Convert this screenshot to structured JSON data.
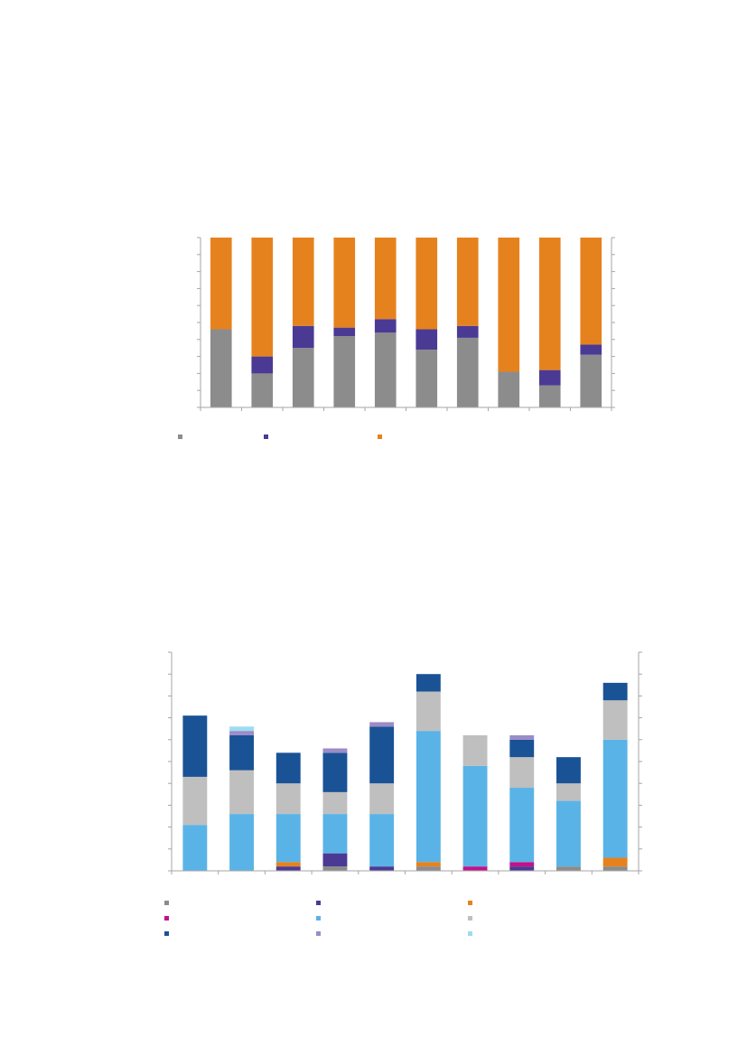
{
  "colors": {
    "axis": "#a6a6a6",
    "legend_c1": "#8c8c8c",
    "legend_c2": "#4b3a94",
    "legend_c3": "#e6821e"
  },
  "chart_data": [
    {
      "type": "bar",
      "stacked": true,
      "percent": true,
      "ylim": [
        0,
        100
      ],
      "grid": false,
      "legend_position": "bottom",
      "categories": [
        "",
        "",
        "",
        "",
        "",
        "",
        "",
        "",
        "",
        ""
      ],
      "series": [
        {
          "color": "#8c8c8c",
          "values": [
            46,
            20,
            35,
            42,
            44,
            34,
            41,
            21,
            13,
            31
          ]
        },
        {
          "color": "#4b3a94",
          "values": [
            0,
            10,
            13,
            5,
            8,
            12,
            7,
            0,
            9,
            6
          ]
        },
        {
          "color": "#e6821e",
          "values": [
            54,
            70,
            52,
            53,
            48,
            54,
            52,
            79,
            78,
            63
          ]
        }
      ]
    },
    {
      "type": "bar",
      "stacked": true,
      "ylim": [
        0,
        100
      ],
      "grid": false,
      "legend_position": "bottom",
      "categories": [
        "",
        "",
        "",
        "",
        "",
        "",
        "",
        "",
        "",
        ""
      ],
      "series": [
        {
          "color": "#8c8c8c",
          "values": [
            0,
            0,
            0,
            2,
            0,
            2,
            0,
            0,
            2,
            2
          ]
        },
        {
          "color": "#4b3a94",
          "values": [
            0,
            0,
            2,
            6,
            2,
            0,
            0,
            2,
            0,
            0
          ]
        },
        {
          "color": "#e6821e",
          "values": [
            0,
            0,
            2,
            0,
            0,
            2,
            0,
            0,
            0,
            4
          ]
        },
        {
          "color": "#c0128c",
          "values": [
            0,
            0,
            0,
            0,
            0,
            0,
            2,
            2,
            0,
            0
          ]
        },
        {
          "color": "#5ab3e6",
          "values": [
            21,
            26,
            22,
            18,
            24,
            60,
            46,
            34,
            30,
            54
          ]
        },
        {
          "color": "#bfbfbf",
          "values": [
            22,
            20,
            14,
            10,
            14,
            18,
            14,
            14,
            8,
            18
          ]
        },
        {
          "color": "#1a5296",
          "values": [
            28,
            16,
            14,
            18,
            26,
            8,
            0,
            8,
            12,
            8
          ]
        },
        {
          "color": "#9b8cc8",
          "values": [
            0,
            2,
            0,
            2,
            2,
            0,
            0,
            2,
            0,
            0
          ]
        },
        {
          "color": "#9ddcf0",
          "values": [
            0,
            2,
            0,
            0,
            0,
            0,
            0,
            0,
            0,
            0
          ]
        }
      ]
    }
  ]
}
